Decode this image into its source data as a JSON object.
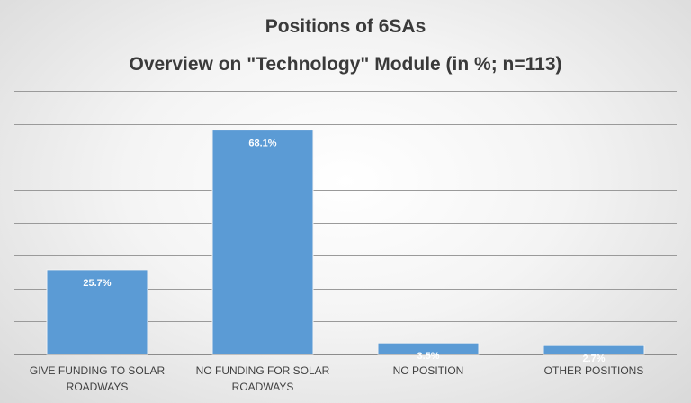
{
  "chart_data": {
    "type": "bar",
    "title": "Positions of 6SAs",
    "subtitle": "Overview on \"Technology\" Module (in %; n=113)",
    "categories": [
      [
        "GIVE FUNDING TO SOLAR",
        "ROADWAYS"
      ],
      [
        "NO FUNDING FOR SOLAR",
        "ROADWAYS"
      ],
      [
        "NO POSITION"
      ],
      [
        "OTHER POSITIONS"
      ]
    ],
    "values": [
      25.7,
      68.1,
      3.5,
      2.7
    ],
    "data_labels": [
      "25.7%",
      "68.1%",
      "3.5%",
      "2.7%"
    ],
    "ylim": [
      0,
      80
    ],
    "grid": true,
    "y_tick_labels_shown": false,
    "colors": {
      "bar": "#5b9bd5",
      "data_label": "#ffffff",
      "title": "#3a3a3a"
    }
  }
}
